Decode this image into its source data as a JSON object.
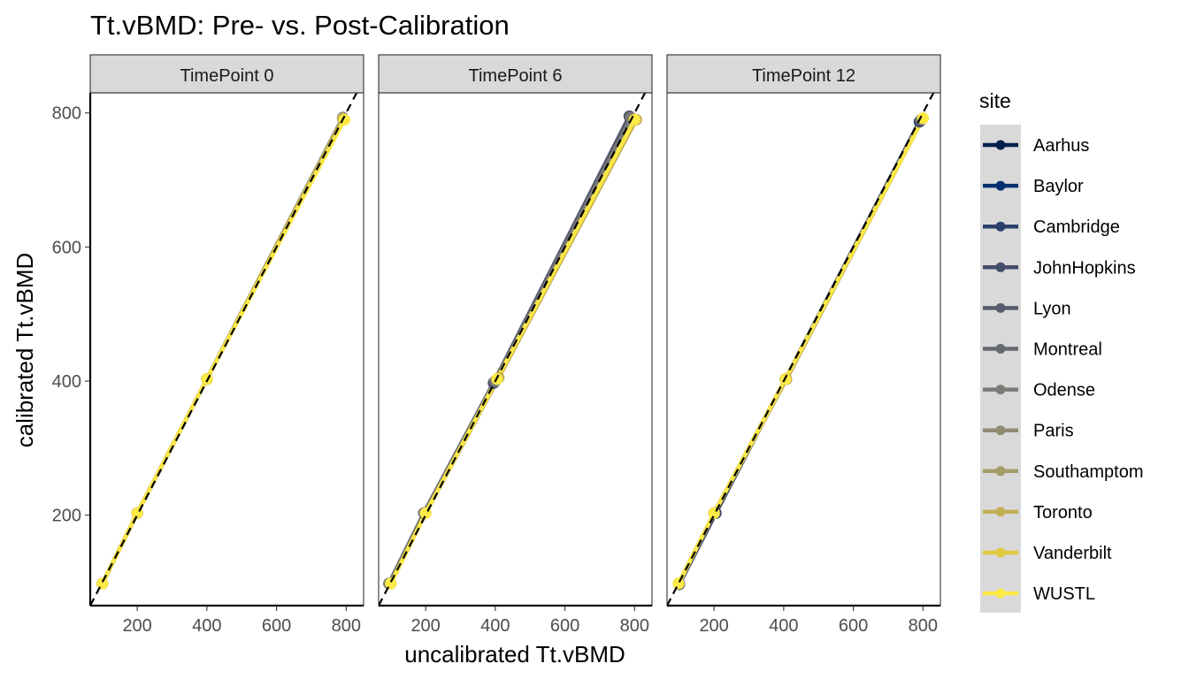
{
  "chart_data": {
    "type": "line",
    "title": "Tt.vBMD: Pre- vs. Post-Calibration",
    "xlabel": "uncalibrated Tt.vBMD",
    "ylabel": "calibrated Tt.vBMD",
    "xlim": [
      65,
      850
    ],
    "ylim": [
      65,
      830
    ],
    "x_ticks": [
      200,
      400,
      600,
      800
    ],
    "y_ticks": [
      200,
      400,
      600,
      800
    ],
    "reference_line": "dashed identity line y = x",
    "legend_title": "site",
    "legend_placement": "right",
    "grid": false,
    "panels": [
      {
        "label": "TimePoint 0",
        "series": [
          {
            "name": "Aarhus",
            "color": "#00204D",
            "x": [
              100,
              200,
              400,
              790
            ],
            "y": [
              98,
              203,
              403,
              792
            ]
          },
          {
            "name": "Baylor",
            "color": "#00306F",
            "x": [
              100,
              200,
              400,
              790
            ],
            "y": [
              98,
              203,
              403,
              793
            ]
          },
          {
            "name": "Cambridge",
            "color": "#2A3F6C",
            "x": [
              100,
              200,
              400,
              790
            ],
            "y": [
              98,
              203,
              403,
              792
            ]
          },
          {
            "name": "JohnHopkins",
            "color": "#424D6B",
            "x": [
              100,
              200,
              400,
              790
            ],
            "y": [
              98,
              203,
              403,
              792
            ]
          },
          {
            "name": "Lyon",
            "color": "#575C6D",
            "x": [
              100,
              200,
              400,
              790
            ],
            "y": [
              98,
              203,
              403,
              792
            ]
          },
          {
            "name": "Montreal",
            "color": "#666970",
            "x": [
              100,
              200,
              400,
              790
            ],
            "y": [
              98,
              203,
              403,
              792
            ]
          },
          {
            "name": "Odense",
            "color": "#7C7B78",
            "x": [
              100,
              200,
              400,
              790
            ],
            "y": [
              98,
              203,
              403,
              792
            ]
          },
          {
            "name": "Paris",
            "color": "#918B74",
            "x": [
              100,
              200,
              400,
              790
            ],
            "y": [
              98,
              203,
              403,
              792
            ]
          },
          {
            "name": "Southamptom",
            "color": "#A69C68",
            "x": [
              100,
              200,
              400,
              790
            ],
            "y": [
              98,
              203,
              403,
              792
            ]
          },
          {
            "name": "Toronto",
            "color": "#C2AF55",
            "x": [
              100,
              200,
              400,
              790
            ],
            "y": [
              98,
              203,
              403,
              792
            ]
          },
          {
            "name": "Vanderbilt",
            "color": "#E1C83F",
            "x": [
              100,
              200,
              400,
              795
            ],
            "y": [
              98,
              203,
              403,
              790
            ]
          },
          {
            "name": "WUSTL",
            "color": "#FDEA45",
            "x": [
              100,
              200,
              400,
              795
            ],
            "y": [
              98,
              203,
              403,
              790
            ]
          }
        ]
      },
      {
        "label": "TimePoint 6",
        "series": [
          {
            "name": "Aarhus",
            "color": "#00204D",
            "x": [
              95,
              195,
              395,
              785
            ],
            "y": [
              98,
              203,
              397,
              795
            ]
          },
          {
            "name": "Baylor",
            "color": "#00306F",
            "x": [
              95,
              195,
              395,
              785
            ],
            "y": [
              98,
              203,
              397,
              795
            ]
          },
          {
            "name": "Cambridge",
            "color": "#2A3F6C",
            "x": [
              95,
              195,
              395,
              785
            ],
            "y": [
              98,
              203,
              397,
              795
            ]
          },
          {
            "name": "JohnHopkins",
            "color": "#424D6B",
            "x": [
              95,
              195,
              395,
              785
            ],
            "y": [
              98,
              203,
              397,
              795
            ]
          },
          {
            "name": "Lyon",
            "color": "#575C6D",
            "x": [
              95,
              195,
              395,
              785
            ],
            "y": [
              98,
              203,
              397,
              795
            ]
          },
          {
            "name": "Montreal",
            "color": "#666970",
            "x": [
              95,
              195,
              400,
              790
            ],
            "y": [
              98,
              203,
              400,
              793
            ]
          },
          {
            "name": "Odense",
            "color": "#7C7B78",
            "x": [
              95,
              195,
              400,
              790
            ],
            "y": [
              98,
              203,
              400,
              793
            ]
          },
          {
            "name": "Paris",
            "color": "#918B74",
            "x": [
              100,
              200,
              405,
              800
            ],
            "y": [
              98,
              203,
              403,
              790
            ]
          },
          {
            "name": "Southamptom",
            "color": "#A69C68",
            "x": [
              100,
              200,
              410,
              805
            ],
            "y": [
              98,
              203,
              405,
              790
            ]
          },
          {
            "name": "Toronto",
            "color": "#C2AF55",
            "x": [
              100,
              200,
              410,
              805
            ],
            "y": [
              98,
              203,
              405,
              790
            ]
          },
          {
            "name": "Vanderbilt",
            "color": "#E1C83F",
            "x": [
              100,
              200,
              405,
              800
            ],
            "y": [
              98,
              203,
              403,
              790
            ]
          },
          {
            "name": "WUSTL",
            "color": "#FDEA45",
            "x": [
              100,
              200,
              405,
              800
            ],
            "y": [
              98,
              203,
              403,
              790
            ]
          }
        ]
      },
      {
        "label": "TimePoint 12",
        "series": [
          {
            "name": "Aarhus",
            "color": "#00204D",
            "x": [
              100,
              205,
              405,
              790
            ],
            "y": [
              97,
              203,
              403,
              787
            ]
          },
          {
            "name": "Baylor",
            "color": "#00306F",
            "x": [
              100,
              205,
              405,
              790
            ],
            "y": [
              97,
              203,
              403,
              787
            ]
          },
          {
            "name": "Cambridge",
            "color": "#2A3F6C",
            "x": [
              100,
              205,
              405,
              790
            ],
            "y": [
              97,
              203,
              403,
              787
            ]
          },
          {
            "name": "JohnHopkins",
            "color": "#424D6B",
            "x": [
              100,
              205,
              405,
              790
            ],
            "y": [
              97,
              203,
              403,
              787
            ]
          },
          {
            "name": "Lyon",
            "color": "#575C6D",
            "x": [
              100,
              200,
              405,
              795
            ],
            "y": [
              98,
              203,
              403,
              790
            ]
          },
          {
            "name": "Montreal",
            "color": "#666970",
            "x": [
              100,
              200,
              405,
              795
            ],
            "y": [
              98,
              203,
              403,
              790
            ]
          },
          {
            "name": "Odense",
            "color": "#7C7B78",
            "x": [
              100,
              200,
              405,
              795
            ],
            "y": [
              98,
              203,
              403,
              790
            ]
          },
          {
            "name": "Paris",
            "color": "#918B74",
            "x": [
              98,
              200,
              408,
              800
            ],
            "y": [
              98,
              203,
              403,
              792
            ]
          },
          {
            "name": "Southamptom",
            "color": "#A69C68",
            "x": [
              98,
              200,
              408,
              800
            ],
            "y": [
              98,
              203,
              403,
              792
            ]
          },
          {
            "name": "Toronto",
            "color": "#C2AF55",
            "x": [
              98,
              200,
              408,
              800
            ],
            "y": [
              98,
              203,
              403,
              792
            ]
          },
          {
            "name": "Vanderbilt",
            "color": "#E1C83F",
            "x": [
              98,
              200,
              405,
              800
            ],
            "y": [
              98,
              203,
              403,
              792
            ]
          },
          {
            "name": "WUSTL",
            "color": "#FDEA45",
            "x": [
              98,
              200,
              405,
              800
            ],
            "y": [
              98,
              203,
              403,
              792
            ]
          }
        ]
      }
    ]
  }
}
